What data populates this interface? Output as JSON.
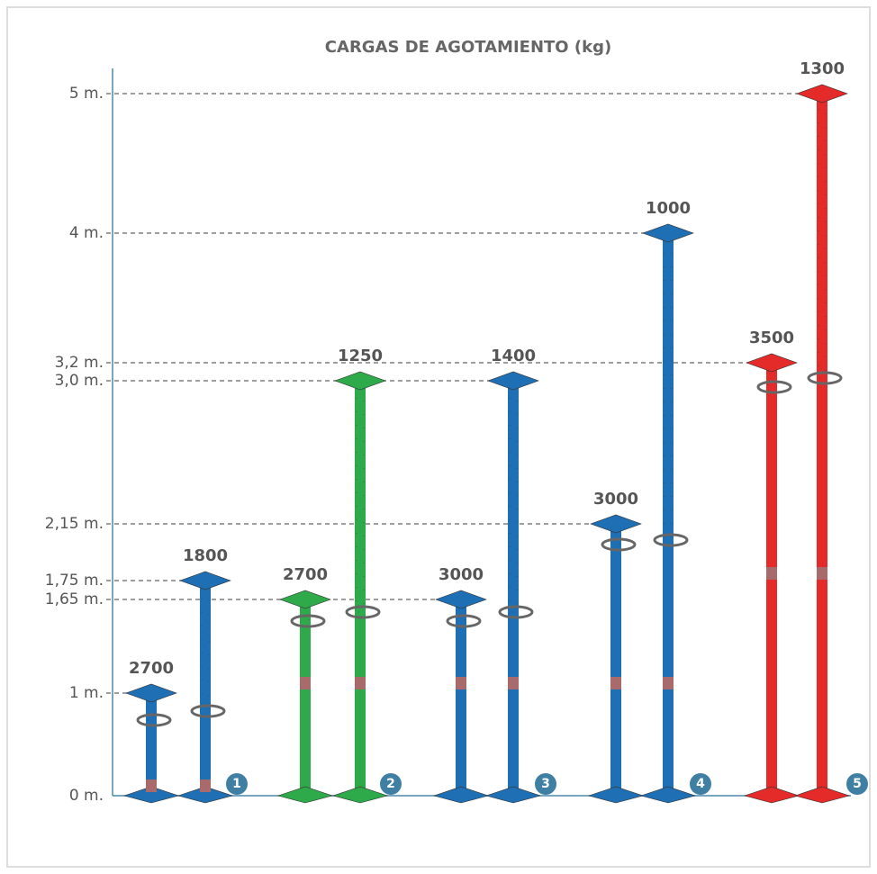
{
  "title": "CARGAS DE AGOTAMIENTO (kg)",
  "levels": [
    "5 m.",
    "4 m.",
    "3,2 m.",
    "3,0 m.",
    "2,15 m.",
    "1,75 m.",
    "1,65 m.",
    "1 m.",
    "0 m."
  ],
  "groups": [
    {
      "number": "1",
      "props": [
        {
          "load": "2700"
        },
        {
          "load": "1800"
        }
      ]
    },
    {
      "number": "2",
      "props": [
        {
          "load": "2700"
        },
        {
          "load": "1250"
        }
      ]
    },
    {
      "number": "3",
      "props": [
        {
          "load": "3000"
        },
        {
          "load": "1400"
        }
      ]
    },
    {
      "number": "4",
      "props": [
        {
          "load": "3000"
        },
        {
          "load": "1000"
        }
      ]
    },
    {
      "number": "5",
      "props": [
        {
          "load": "3500"
        },
        {
          "load": "1300"
        }
      ]
    }
  ]
}
